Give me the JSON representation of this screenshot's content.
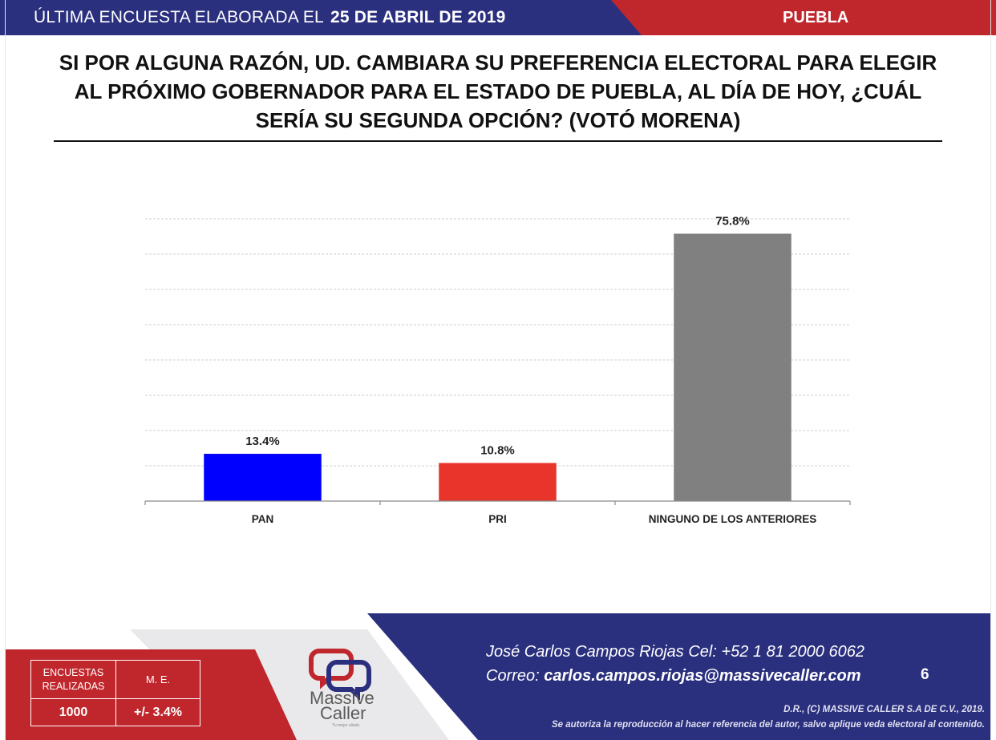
{
  "header": {
    "prefix": "ÚLTIMA ENCUESTA ELABORADA EL",
    "date": "25 DE ABRIL DE 2019",
    "state": "PUEBLA",
    "colors": {
      "blue": "#2a2f7e",
      "red": "#c0272d"
    }
  },
  "title": {
    "line1": "SI POR ALGUNA RAZÓN, UD. CAMBIARA SU PREFERENCIA ELECTORAL PARA ELEGIR",
    "line2": "AL PRÓXIMO GOBERNADOR PARA EL ESTADO DE PUEBLA, AL DÍA DE HOY, ¿CUÁL",
    "line3": "SERÍA SU SEGUNDA OPCIÓN? (VOTÓ MORENA)"
  },
  "chart_data": {
    "type": "bar",
    "categories": [
      "PAN",
      "PRI",
      "NINGUNO DE LOS ANTERIORES"
    ],
    "values": [
      13.4,
      10.8,
      75.8
    ],
    "data_labels": [
      "13.4%",
      "10.8%",
      "75.8%"
    ],
    "colors": [
      "#0000ff",
      "#e8342a",
      "#808080"
    ],
    "ylim": [
      0,
      80
    ],
    "grid": true,
    "title": "",
    "xlabel": "",
    "ylabel": ""
  },
  "footer": {
    "contact_line1": "José Carlos Campos Riojas Cel: +52 1 81 2000 6062",
    "contact_label": "Correo:",
    "contact_email": "carlos.campos.riojas@massivecaller.com",
    "page_number": "6",
    "legal_line1": "D.R., (C) MASSIVE CALLER S.A DE C.V., 2019.",
    "legal_line2": "Se autoriza la reproducción al hacer referencia del autor, salvo aplique veda electoral al contenido.",
    "logo_word1": "Massive",
    "logo_word2": "Caller",
    "logo_tagline": "Tu mejor aliado",
    "stats": {
      "label_left": "ENCUESTAS REALIZADAS",
      "label_right": "M. E.",
      "value_left": "1000",
      "value_right": "+/- 3.4%"
    }
  }
}
